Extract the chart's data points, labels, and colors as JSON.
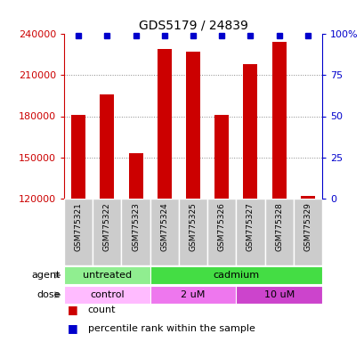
{
  "title": "GDS5179 / 24839",
  "samples": [
    "GSM775321",
    "GSM775322",
    "GSM775323",
    "GSM775324",
    "GSM775325",
    "GSM775326",
    "GSM775327",
    "GSM775328",
    "GSM775329"
  ],
  "counts": [
    181000,
    196000,
    153000,
    229000,
    227000,
    181000,
    218000,
    234000,
    122000
  ],
  "ylim": [
    120000,
    240000
  ],
  "yticks": [
    120000,
    150000,
    180000,
    210000,
    240000
  ],
  "right_yticks": [
    0,
    25,
    50,
    75,
    100
  ],
  "right_ytick_labels": [
    "0",
    "25",
    "50",
    "75",
    "100%"
  ],
  "bar_color": "#cc0000",
  "dot_color": "#0000cc",
  "agent_groups": [
    {
      "label": "untreated",
      "start": 0,
      "end": 3,
      "color": "#90ee90"
    },
    {
      "label": "cadmium",
      "start": 3,
      "end": 9,
      "color": "#44dd44"
    }
  ],
  "dose_groups": [
    {
      "label": "control",
      "start": 0,
      "end": 3,
      "color": "#ffbbff"
    },
    {
      "label": "2 uM",
      "start": 3,
      "end": 6,
      "color": "#ee77ee"
    },
    {
      "label": "10 uM",
      "start": 6,
      "end": 9,
      "color": "#cc44cc"
    }
  ],
  "sample_bg_color": "#cccccc",
  "sample_border_color": "#ffffff",
  "agent_label": "agent",
  "dose_label": "dose",
  "legend_count_label": "count",
  "legend_pct_label": "percentile rank within the sample",
  "background_color": "#ffffff",
  "grid_color": "#888888",
  "tick_label_color_left": "#cc0000",
  "tick_label_color_right": "#0000cc",
  "title_fontsize": 10,
  "bar_width": 0.5
}
